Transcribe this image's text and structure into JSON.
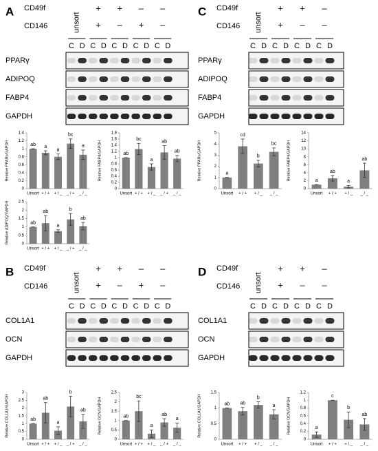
{
  "figure": {
    "panels": [
      {
        "label": "A",
        "cd49f": "CD49f",
        "cd146": "CD146",
        "unsort": "unsort",
        "cd49f_signs": [
          "+",
          "+",
          "–",
          "–"
        ],
        "cd146_signs": [
          "+",
          "–",
          "+",
          "–"
        ],
        "lanes": [
          "C",
          "D",
          "C",
          "D",
          "C",
          "D",
          "C",
          "D",
          "C",
          "D"
        ],
        "blots": [
          "PPARγ",
          "ADIPOQ",
          "FABP4",
          "GAPDH"
        ]
      },
      {
        "label": "C",
        "cd49f": "CD49f",
        "cd146": "CD146",
        "unsort": "unsort",
        "cd49f_signs": [
          "+",
          "+",
          "–"
        ],
        "cd146_signs": [
          "+",
          "–",
          "–"
        ],
        "lanes": [
          "C",
          "D",
          "C",
          "D",
          "C",
          "D",
          "C",
          "D"
        ],
        "blots": [
          "PPARγ",
          "ADIPOQ",
          "FABP4",
          "GAPDH"
        ]
      },
      {
        "label": "B",
        "cd49f": "CD49f",
        "cd146": "CD146",
        "unsort": "unsort",
        "cd49f_signs": [
          "+",
          "+",
          "–",
          "–"
        ],
        "cd146_signs": [
          "+",
          "–",
          "+",
          "–"
        ],
        "lanes": [
          "C",
          "D",
          "C",
          "D",
          "C",
          "D",
          "C",
          "D",
          "C",
          "D"
        ],
        "blots": [
          "COL1A1",
          "OCN",
          "GAPDH"
        ]
      },
      {
        "label": "D",
        "cd49f": "CD49f",
        "cd146": "CD146",
        "unsort": "unsort",
        "cd49f_signs": [
          "+",
          "+",
          "–"
        ],
        "cd146_signs": [
          "+",
          "–",
          "–"
        ],
        "lanes": [
          "C",
          "D",
          "C",
          "D",
          "C",
          "D",
          "C",
          "D"
        ],
        "blots": [
          "COL1A1",
          "OCN",
          "GAPDH"
        ]
      }
    ]
  },
  "chart_data": [
    {
      "type": "bar",
      "y_label": "Relative PPARγ/GAPDH",
      "categories": [
        "Unsort",
        "+ / +",
        "+ / _",
        "_ / +",
        "_ / _"
      ],
      "values": [
        1.0,
        0.9,
        0.8,
        1.13,
        0.85
      ],
      "errors": [
        0,
        0.05,
        0.07,
        0.12,
        0.12
      ],
      "letters": [
        "ab",
        "a",
        "a",
        "bc",
        "a"
      ],
      "color": "#7f7f7f",
      "ylim": [
        0,
        1.4
      ],
      "yticks": [
        0,
        0.2,
        0.4,
        0.6,
        0.8,
        1,
        1.2,
        1.4
      ]
    },
    {
      "type": "bar",
      "y_label": "Relative FABP4/GAPDH",
      "categories": [
        "Unsort",
        "+ / +",
        "+ / _",
        "_ / +",
        "_ / _"
      ],
      "values": [
        1.0,
        1.28,
        0.7,
        1.17,
        0.97
      ],
      "errors": [
        0,
        0.18,
        0.1,
        0.22,
        0.1
      ],
      "letters": [
        "ab",
        "bc",
        "a",
        "ab",
        "ab"
      ],
      "color": "#7f7f7f",
      "ylim": [
        0,
        1.8
      ],
      "yticks": [
        0,
        0.2,
        0.4,
        0.6,
        0.8,
        1,
        1.2,
        1.4,
        1.6,
        1.8
      ]
    },
    {
      "type": "bar",
      "y_label": "Relative ADIPOQ/GAPDH",
      "categories": [
        "Unsort",
        "+ / +",
        "+ / _",
        "_ / +",
        "_ / _"
      ],
      "values": [
        1.0,
        1.22,
        0.75,
        1.45,
        1.05
      ],
      "errors": [
        0,
        0.45,
        0.08,
        0.35,
        0.22
      ],
      "letters": [
        "ab",
        "ab",
        "a",
        "b",
        "ab"
      ],
      "color": "#7f7f7f",
      "ylim": [
        0,
        2.5
      ],
      "yticks": [
        0,
        0.5,
        1,
        1.5,
        2,
        2.5
      ]
    },
    {
      "type": "bar",
      "y_label": "Relative PPARγ/GAPDH",
      "categories": [
        "Unsort",
        "+ / +",
        "+ / _",
        "_ / _"
      ],
      "values": [
        1.0,
        3.8,
        2.25,
        3.3
      ],
      "errors": [
        0,
        0.65,
        0.3,
        0.35
      ],
      "letters": [
        "a",
        "cd",
        "b",
        "bc"
      ],
      "color": "#7f7f7f",
      "ylim": [
        0,
        5
      ],
      "yticks": [
        0,
        1,
        2,
        3,
        4,
        5
      ]
    },
    {
      "type": "bar",
      "y_label": "Relative FABP4/GAPDH",
      "categories": [
        "Unsort",
        "+ / +",
        "+ / _",
        "_ / _"
      ],
      "values": [
        1.0,
        2.6,
        0.5,
        4.6
      ],
      "errors": [
        0,
        0.7,
        0.3,
        1.8
      ],
      "letters": [
        "a",
        "ab",
        "a",
        "ab"
      ],
      "color": "#7f7f7f",
      "ylim": [
        0,
        14
      ],
      "yticks": [
        0,
        2,
        4,
        6,
        8,
        10,
        12,
        14
      ]
    },
    {
      "type": "bar",
      "y_label": "Relative COL1A1/GAPDH",
      "categories": [
        "Unsort",
        "+ / +",
        "+ / _",
        "_ / +",
        "_ / _"
      ],
      "values": [
        1.0,
        1.7,
        0.55,
        2.1,
        1.15
      ],
      "errors": [
        0,
        0.65,
        0.25,
        0.65,
        0.45
      ],
      "letters": [
        "ab",
        "ab",
        "a",
        "b",
        "ab"
      ],
      "color": "#7f7f7f",
      "ylim": [
        0,
        3
      ],
      "yticks": [
        0,
        0.5,
        1,
        1.5,
        2,
        2.5,
        3
      ]
    },
    {
      "type": "bar",
      "y_label": "Relative OCN/GAPDH",
      "categories": [
        "Unsort",
        "+ / +",
        "+ / _",
        "_ / +",
        "_ / _"
      ],
      "values": [
        1.0,
        1.5,
        0.3,
        0.9,
        0.62
      ],
      "errors": [
        0,
        0.55,
        0.2,
        0.2,
        0.25
      ],
      "letters": [
        "ab",
        "bc",
        "a",
        "ab",
        "a"
      ],
      "color": "#7f7f7f",
      "ylim": [
        0,
        2.5
      ],
      "yticks": [
        0,
        0.5,
        1,
        1.5,
        2,
        2.5
      ]
    },
    {
      "type": "bar",
      "y_label": "Relative COL1A1/GAPDH",
      "categories": [
        "Unsort",
        "+ / +",
        "+ / _",
        "_ / _"
      ],
      "values": [
        1.0,
        0.9,
        1.1,
        0.8
      ],
      "errors": [
        0,
        0.12,
        0.1,
        0.15
      ],
      "letters": [
        "ab",
        "ab",
        "b",
        "a"
      ],
      "color": "#7f7f7f",
      "ylim": [
        0,
        1.5
      ],
      "yticks": [
        0,
        0.5,
        1,
        1.5
      ]
    },
    {
      "type": "bar",
      "y_label": "Relative OCN/GAPDH",
      "categories": [
        "Unsort",
        "+ / +",
        "+ / _",
        "_ / _"
      ],
      "values": [
        0.12,
        1.0,
        0.5,
        0.38
      ],
      "errors": [
        0.07,
        0,
        0.2,
        0.15
      ],
      "letters": [
        "a",
        "c",
        "b",
        "ab"
      ],
      "color": "#7f7f7f",
      "ylim": [
        0,
        1.2
      ],
      "yticks": [
        0,
        0.2,
        0.4,
        0.6,
        0.8,
        1,
        1.2
      ]
    }
  ]
}
